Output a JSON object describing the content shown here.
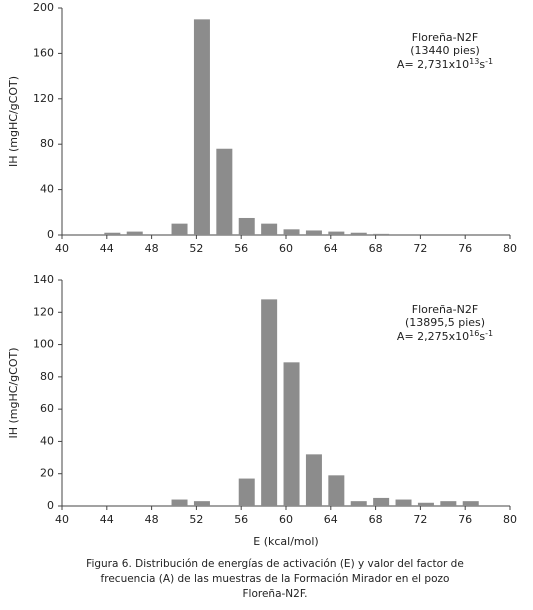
{
  "chart_data": [
    {
      "type": "bar",
      "ylabel": "IH (mgHC/gCOT)",
      "color": "#8c8c8c",
      "x": [
        44.5,
        46.5,
        50.5,
        52.5,
        54.5,
        56.5,
        58.5,
        60.5,
        62.5,
        64.5,
        66.5,
        68.5
      ],
      "values": [
        2,
        3,
        10,
        190,
        76,
        15,
        10,
        5,
        4,
        3,
        2,
        1
      ],
      "xlim": [
        40,
        80
      ],
      "xticks": [
        40,
        44,
        48,
        52,
        56,
        60,
        64,
        68,
        72,
        76,
        80
      ],
      "ylim": [
        0,
        200
      ],
      "yticks": [
        0,
        40,
        80,
        120,
        160,
        200
      ],
      "annotation": [
        "Floreña-N2F",
        "(13440 pies)",
        "A= 2,731x10",
        "13",
        "s",
        "-1"
      ]
    },
    {
      "type": "bar",
      "ylabel": "IH (mgHC/gCOT)",
      "xlabel": "E (kcal/mol)",
      "color": "#8c8c8c",
      "x": [
        50.5,
        52.5,
        56.5,
        58.5,
        60.5,
        62.5,
        64.5,
        66.5,
        68.5,
        70.5,
        72.5,
        74.5,
        76.5
      ],
      "values": [
        4,
        3,
        17,
        128,
        89,
        32,
        19,
        3,
        5,
        4,
        2,
        3,
        3
      ],
      "xlim": [
        40,
        80
      ],
      "xticks": [
        40,
        44,
        48,
        52,
        56,
        60,
        64,
        68,
        72,
        76,
        80
      ],
      "ylim": [
        0,
        140
      ],
      "yticks": [
        0,
        20,
        40,
        60,
        80,
        100,
        120,
        140
      ],
      "annotation": [
        "Floreña-N2F",
        "(13895,5 pies)",
        "A= 2,275x10",
        "16",
        "s",
        "-1"
      ]
    }
  ],
  "caption": [
    "Figura 6.  Distribución de energías de activación (E) y valor del factor de",
    "frecuencia (A) de las muestras de la Formación Mirador en el pozo",
    "Floreña-N2F."
  ]
}
